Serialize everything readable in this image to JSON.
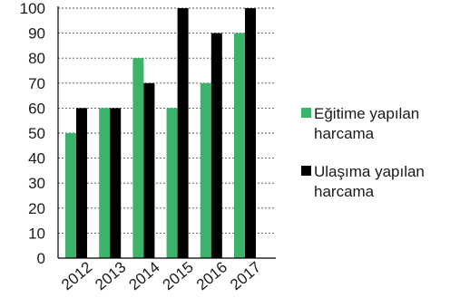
{
  "chart_data": {
    "type": "bar",
    "categories": [
      "2012",
      "2013",
      "2014",
      "2015",
      "2016",
      "2017"
    ],
    "series": [
      {
        "name": "Eğitime yapılan harcama",
        "name_lines": [
          "Eğitime yapılan",
          "harcama"
        ],
        "color": "#3cb36a",
        "values": [
          50,
          60,
          80,
          60,
          70,
          90
        ]
      },
      {
        "name": "Ulaşıma yapılan harcama",
        "name_lines": [
          "Ulaşıma yapılan",
          "harcama"
        ],
        "color": "#000000",
        "values": [
          60,
          60,
          70,
          100,
          90,
          100
        ]
      }
    ],
    "y_ticks": [
      "0",
      "10",
      "20",
      "30",
      "40",
      "50",
      "60",
      "70",
      "80",
      "90",
      "100"
    ],
    "ylim": [
      0,
      100
    ],
    "grid": true,
    "grid_style": "dashed",
    "legend_position": "right",
    "title": "",
    "xlabel": "",
    "ylabel": ""
  }
}
